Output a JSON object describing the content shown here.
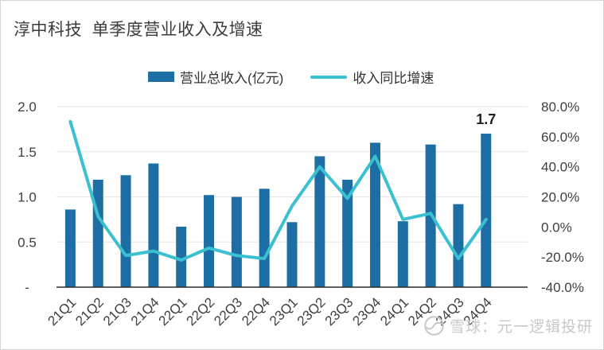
{
  "page": {
    "title": "淳中科技  单季度营业收入及增速"
  },
  "watermark": {
    "source": "雪球",
    "text": "雪球：元一逻辑投研",
    "icon": "xueqiu-logo-icon",
    "color": "#C9C9C9"
  },
  "chart_data": {
    "type": "combo-bar-line",
    "title": "淳中科技  单季度营业收入及增速",
    "categories": [
      "21Q1",
      "21Q2",
      "21Q3",
      "21Q4",
      "22Q1",
      "22Q2",
      "22Q3",
      "22Q4",
      "23Q1",
      "23Q2",
      "23Q3",
      "23Q4",
      "24Q1",
      "24Q2",
      "24Q3",
      "24Q4"
    ],
    "series": [
      {
        "name": "营业总收入(亿元)",
        "type": "bar",
        "axis": "left",
        "unit": "亿元",
        "color": "#1C6EA4",
        "values": [
          0.86,
          1.19,
          1.24,
          1.37,
          0.67,
          1.02,
          1.0,
          1.09,
          0.72,
          1.45,
          1.19,
          1.6,
          0.73,
          1.58,
          0.92,
          1.7
        ]
      },
      {
        "name": "收入同比增速",
        "type": "line",
        "axis": "right",
        "unit": "%",
        "color": "#3BC0D2",
        "values": [
          70,
          7,
          -19,
          -16,
          -22,
          -14,
          -19,
          -21,
          14,
          40,
          19,
          47,
          5,
          9,
          -21,
          5
        ]
      }
    ],
    "left_axis": {
      "min": 0,
      "max": 2.0,
      "ticks": [
        {
          "label": "2.0",
          "value": 2.0
        },
        {
          "label": "1.5",
          "value": 1.5
        },
        {
          "label": "1.0",
          "value": 1.0
        },
        {
          "label": "0.5",
          "value": 0.5
        },
        {
          "label": "-",
          "value": 0
        }
      ]
    },
    "right_axis": {
      "min": -40,
      "max": 80,
      "ticks": [
        {
          "label": "80.0%",
          "value": 80
        },
        {
          "label": "60.0%",
          "value": 60
        },
        {
          "label": "40.0%",
          "value": 40
        },
        {
          "label": "20.0%",
          "value": 20
        },
        {
          "label": "0.0%",
          "value": 0
        },
        {
          "label": "-20.0%",
          "value": -20
        },
        {
          "label": "-40.0%",
          "value": -40
        }
      ]
    },
    "annotations": [
      {
        "text": "1.7",
        "category": "24Q4",
        "series": "营业总收入(亿元)"
      }
    ],
    "grid": true,
    "legend_position": "top"
  }
}
